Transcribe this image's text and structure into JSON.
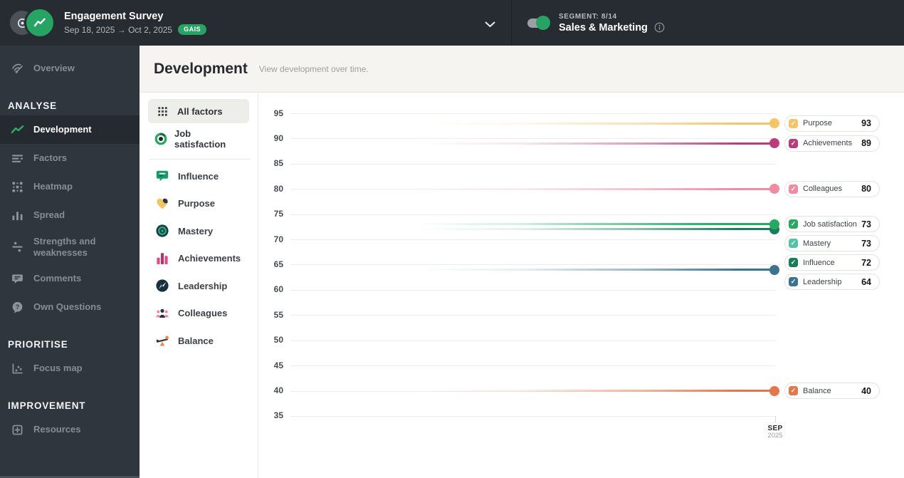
{
  "topbar": {
    "survey": {
      "title": "Engagement Survey",
      "date_range": "Sep 18, 2025 → Oct 2, 2025",
      "badge": "GAIS"
    },
    "segment": {
      "label": "SEGMENT: 8/14",
      "name": "Sales & Marketing"
    }
  },
  "sidebar": {
    "sections": [
      {
        "header": "",
        "items": [
          {
            "label": "Overview",
            "icon": "overview-icon",
            "active": false
          }
        ]
      },
      {
        "header": "ANALYSE",
        "items": [
          {
            "label": "Development",
            "icon": "development-icon",
            "active": true
          },
          {
            "label": "Factors",
            "icon": "factors-icon",
            "active": false
          },
          {
            "label": "Heatmap",
            "icon": "heatmap-icon",
            "active": false
          },
          {
            "label": "Spread",
            "icon": "spread-icon",
            "active": false
          },
          {
            "label": "Strengths and weaknesses",
            "icon": "strengths-icon",
            "active": false
          },
          {
            "label": "Comments",
            "icon": "comments-icon",
            "active": false
          },
          {
            "label": "Own Questions",
            "icon": "questions-icon",
            "active": false
          }
        ]
      },
      {
        "header": "PRIORITISE",
        "items": [
          {
            "label": "Focus map",
            "icon": "focus-map-icon",
            "active": false
          }
        ]
      },
      {
        "header": "IMPROVEMENT",
        "items": [
          {
            "label": "Resources",
            "icon": "resources-icon",
            "active": false
          }
        ]
      }
    ]
  },
  "page_header": {
    "title": "Development",
    "subtitle": "View development over time."
  },
  "filter_panel": {
    "all_factors_label": "All factors",
    "job_satisfaction_label": "Job satisfaction",
    "factors": [
      {
        "label": "Influence",
        "icon": "influence-icon"
      },
      {
        "label": "Purpose",
        "icon": "purpose-icon"
      },
      {
        "label": "Mastery",
        "icon": "mastery-icon"
      },
      {
        "label": "Achievements",
        "icon": "achievements-icon"
      },
      {
        "label": "Leadership",
        "icon": "leadership-icon"
      },
      {
        "label": "Colleagues",
        "icon": "colleagues-icon"
      },
      {
        "label": "Balance",
        "icon": "balance-icon"
      }
    ]
  },
  "colors": {
    "accent_green": "#27a463",
    "topbar_bg": "#272c33",
    "sidebar_bg": "#30363e"
  },
  "chart_data": {
    "type": "line",
    "title": "",
    "xlabel": "",
    "ylabel": "",
    "x": [
      "SEP 2025"
    ],
    "x_tick": {
      "month": "SEP",
      "year": "2025"
    },
    "ylim": [
      35,
      95
    ],
    "yticks": [
      95,
      90,
      85,
      80,
      75,
      70,
      65,
      60,
      55,
      50,
      45,
      40,
      35
    ],
    "grid": true,
    "legend_position": "right",
    "legend_checked": true,
    "series": [
      {
        "name": "Purpose",
        "values": [
          93
        ],
        "color": "#f6c466"
      },
      {
        "name": "Achievements",
        "values": [
          89
        ],
        "color": "#b93d7d"
      },
      {
        "name": "Colleagues",
        "values": [
          80
        ],
        "color": "#ee8ca1"
      },
      {
        "name": "Job satisfaction",
        "values": [
          73
        ],
        "color": "#27a95f"
      },
      {
        "name": "Mastery",
        "values": [
          73
        ],
        "color": "#56c3a7"
      },
      {
        "name": "Influence",
        "values": [
          72
        ],
        "color": "#197c5b"
      },
      {
        "name": "Leadership",
        "values": [
          64
        ],
        "color": "#3b7290"
      },
      {
        "name": "Balance",
        "values": [
          40
        ],
        "color": "#e3764a"
      }
    ]
  }
}
